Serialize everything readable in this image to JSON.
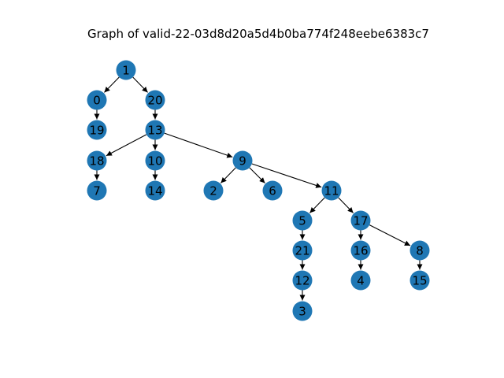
{
  "title": "Graph of valid-22-03d8d20a5d4b0ba774f248eebe6383c7",
  "colors": {
    "node_fill": "#1f77b4",
    "edge": "#000000",
    "label": "#000000",
    "background": "#ffffff"
  },
  "graph": {
    "directed": true,
    "nodes": [
      "1",
      "0",
      "20",
      "19",
      "13",
      "18",
      "10",
      "9",
      "7",
      "14",
      "2",
      "6",
      "11",
      "5",
      "17",
      "21",
      "16",
      "8",
      "12",
      "4",
      "15",
      "3"
    ],
    "edges": [
      [
        "1",
        "0"
      ],
      [
        "1",
        "20"
      ],
      [
        "0",
        "19"
      ],
      [
        "20",
        "13"
      ],
      [
        "13",
        "18"
      ],
      [
        "13",
        "10"
      ],
      [
        "13",
        "9"
      ],
      [
        "18",
        "7"
      ],
      [
        "10",
        "14"
      ],
      [
        "9",
        "2"
      ],
      [
        "9",
        "6"
      ],
      [
        "9",
        "11"
      ],
      [
        "11",
        "5"
      ],
      [
        "11",
        "17"
      ],
      [
        "5",
        "21"
      ],
      [
        "21",
        "12"
      ],
      [
        "12",
        "3"
      ],
      [
        "17",
        "16"
      ],
      [
        "17",
        "8"
      ],
      [
        "16",
        "4"
      ],
      [
        "8",
        "15"
      ]
    ]
  }
}
